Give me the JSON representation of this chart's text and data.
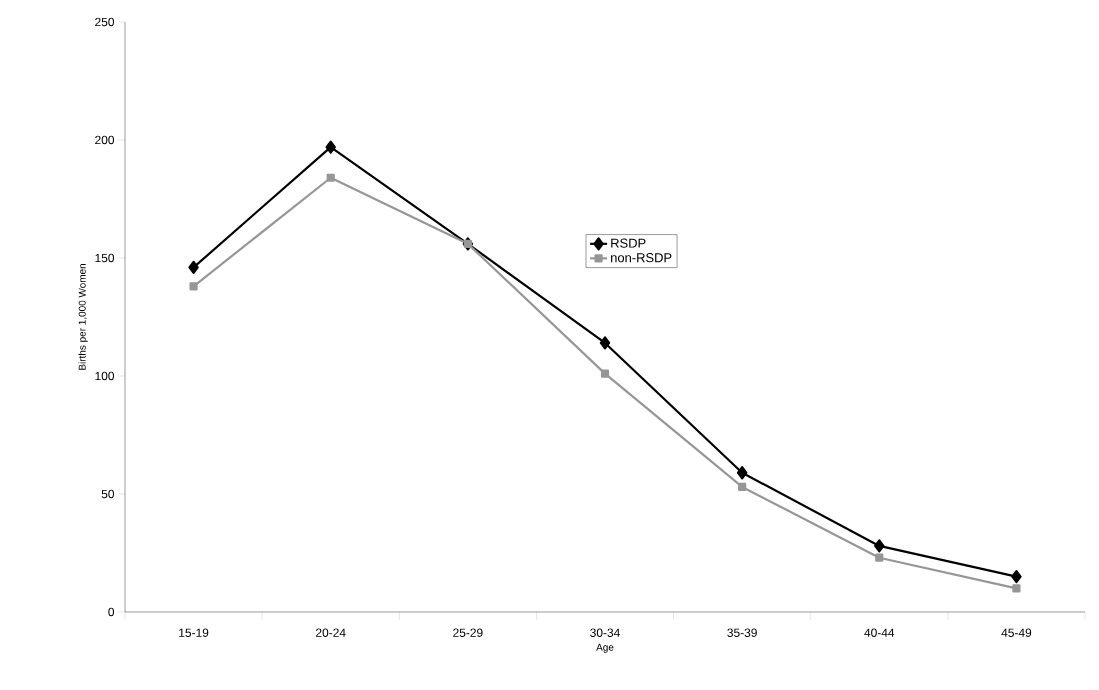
{
  "chart_data": {
    "type": "line",
    "xlabel": "Age",
    "ylabel": "Births per 1,000 Women",
    "categories": [
      "15-19",
      "20-24",
      "25-29",
      "30-34",
      "35-39",
      "40-44",
      "45-49"
    ],
    "series": [
      {
        "name": "RSDP",
        "color": "#000000",
        "marker": "diamond",
        "values": [
          146,
          197,
          156,
          114,
          59,
          28,
          15
        ]
      },
      {
        "name": "non-RSDP",
        "color": "#969696",
        "marker": "square",
        "values": [
          138,
          184,
          156,
          101,
          53,
          23,
          10
        ]
      }
    ],
    "ylim": [
      0,
      250
    ],
    "yticks": [
      0,
      50,
      100,
      150,
      200,
      250
    ],
    "grid": false,
    "legend": "center",
    "line_style": "solid"
  }
}
